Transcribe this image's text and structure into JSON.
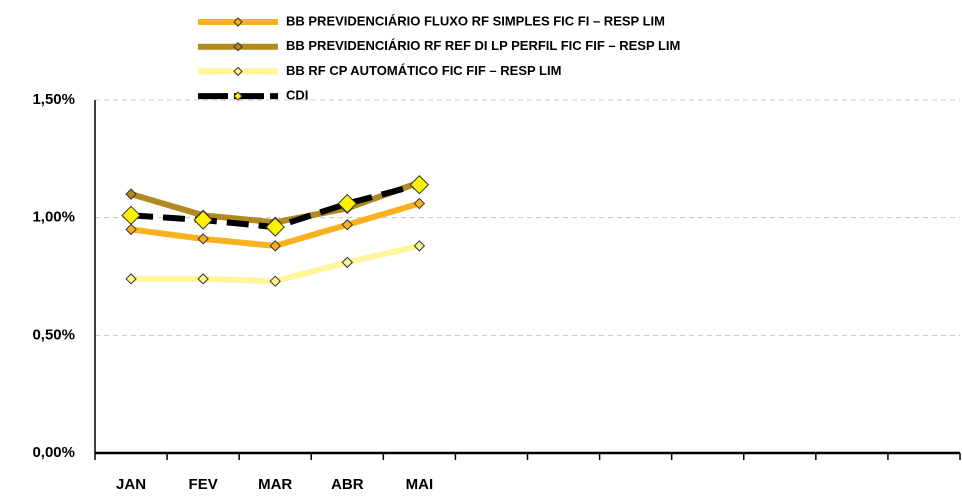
{
  "chart_data": {
    "type": "line",
    "categories": [
      "JAN",
      "FEV",
      "MAR",
      "ABR",
      "MAI",
      null,
      null,
      null,
      null,
      null,
      null,
      null
    ],
    "series": [
      {
        "name": "BB PREVIDENCIÁRIO FLUXO RF SIMPLES FIC FI – RESP LIM",
        "color": "#F9B21E",
        "marker_color": "#F9B21E",
        "values": [
          0.95,
          0.91,
          0.88,
          0.97,
          1.06,
          null,
          null,
          null,
          null,
          null,
          null,
          null
        ]
      },
      {
        "name": "BB PREVIDENCIÁRIO RF REF DI LP PERFIL FIC FIF – RESP LIM",
        "color": "#B08A1E",
        "marker_color": "#B08A1E",
        "values": [
          1.1,
          1.01,
          0.98,
          1.04,
          1.15,
          null,
          null,
          null,
          null,
          null,
          null,
          null
        ]
      },
      {
        "name": "BB RF CP AUTOMÁTICO FIC FIF – RESP LIM",
        "color": "#FFF59A",
        "marker_color": "#FFF59A",
        "values": [
          0.74,
          0.74,
          0.73,
          0.81,
          0.88,
          null,
          null,
          null,
          null,
          null,
          null,
          null
        ]
      },
      {
        "name": "CDI",
        "color": "#000000",
        "marker_color": "#FFF200",
        "values": [
          1.01,
          0.99,
          0.96,
          1.06,
          1.14,
          null,
          null,
          null,
          null,
          null,
          null,
          null
        ]
      }
    ],
    "ylim": [
      0,
      1.5
    ],
    "yticks": [
      {
        "value": 0,
        "label": "0,00%"
      },
      {
        "value": 0.5,
        "label": "0,50%"
      },
      {
        "value": 1,
        "label": "1,00%"
      },
      {
        "value": 1.5,
        "label": "1,50%"
      }
    ],
    "grid": true
  }
}
